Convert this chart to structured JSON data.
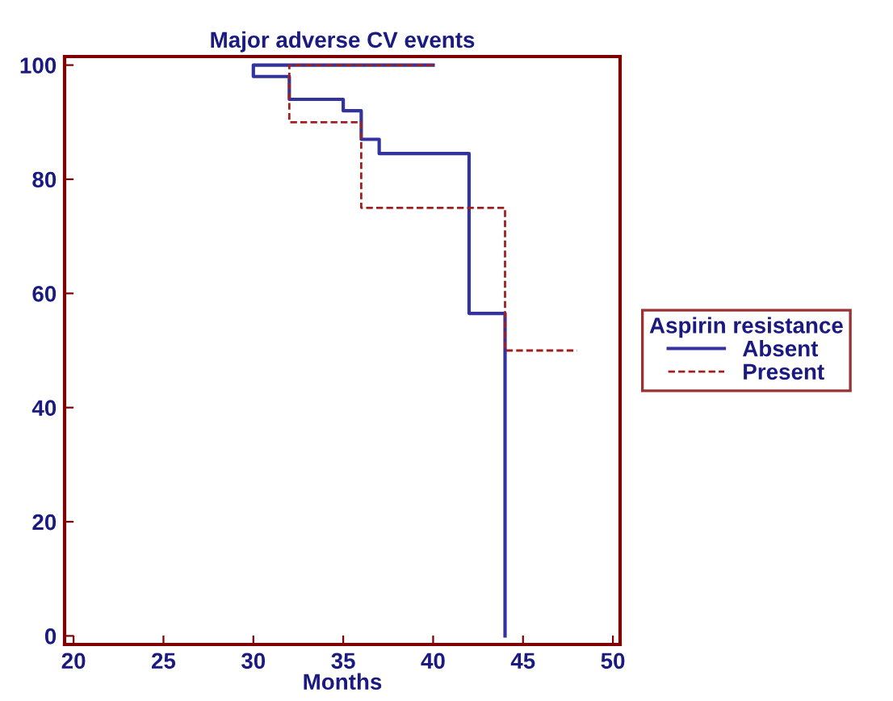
{
  "chart_data": {
    "type": "line",
    "title": "Major adverse CV events",
    "xlabel": "Months",
    "legend_title": "Aspirin resistance",
    "legend": "right",
    "grid": false,
    "xlim": [
      19.5,
      50.4
    ],
    "ylim": [
      -1.5,
      101.5
    ],
    "xticks": [
      20,
      25,
      30,
      35,
      40,
      45,
      50
    ],
    "yticks": [
      0,
      20,
      40,
      60,
      80,
      100
    ],
    "series": [
      {
        "name": "Absent",
        "color": "#3333a0",
        "line_style": "solid",
        "x": [
          40,
          30,
          30,
          32,
          32,
          35,
          35,
          36,
          36,
          37,
          37,
          42,
          42,
          44,
          44
        ],
        "values": [
          100,
          100,
          98,
          98,
          94,
          94,
          92,
          92,
          87,
          87,
          84.5,
          84.5,
          56.5,
          56.5,
          0
        ]
      },
      {
        "name": "Present",
        "color": "#a02020",
        "line_style": "dashed",
        "x": [
          40,
          32,
          32,
          36,
          36,
          44,
          44,
          48
        ],
        "values": [
          100,
          100,
          90,
          90,
          75,
          75,
          50,
          50
        ]
      }
    ]
  }
}
